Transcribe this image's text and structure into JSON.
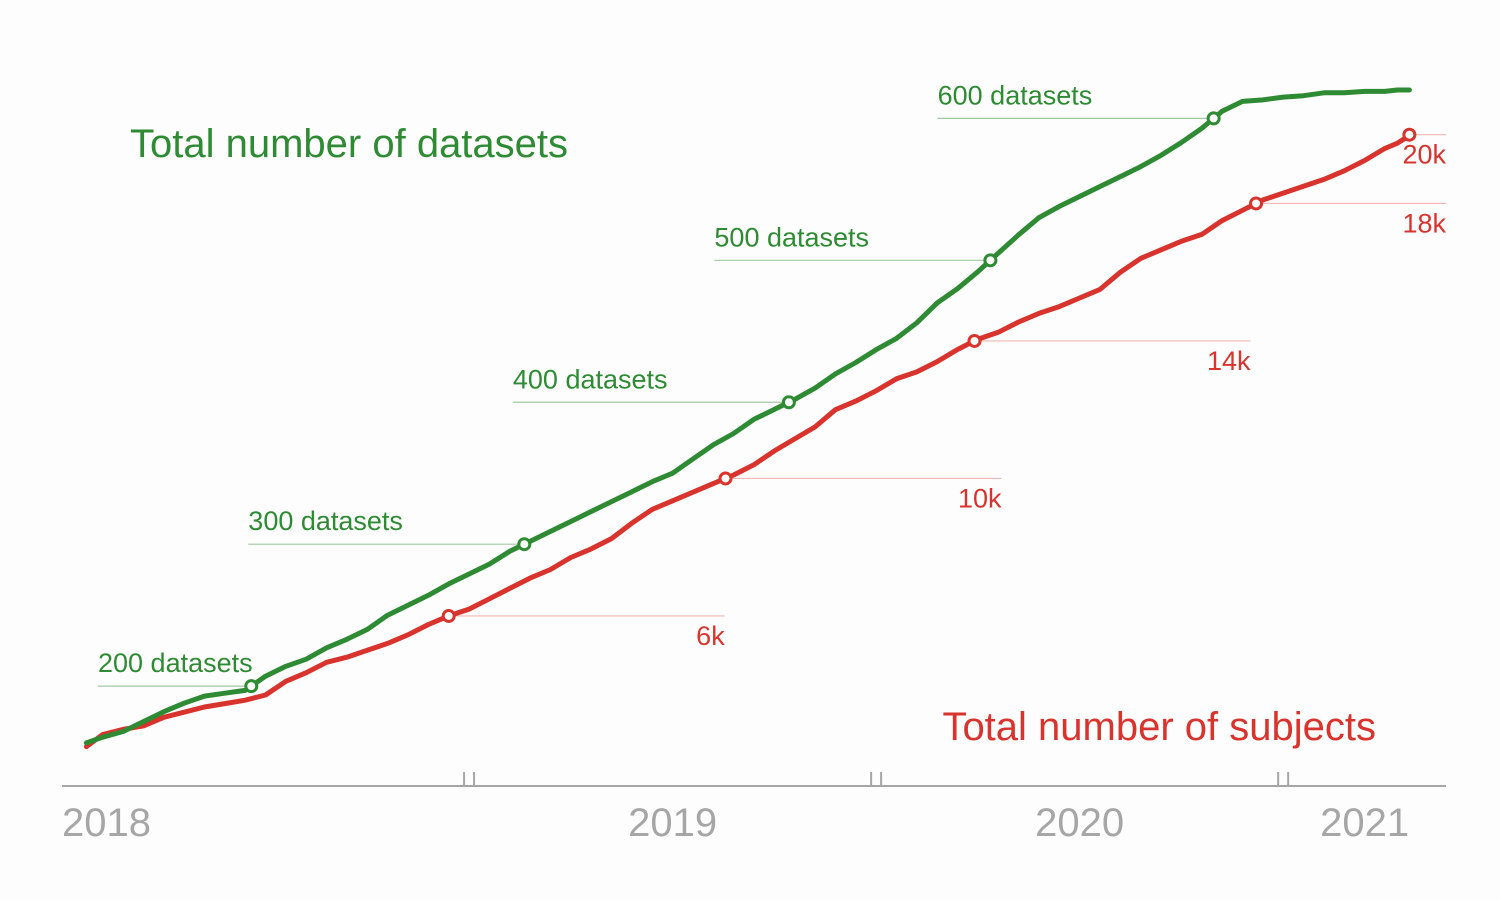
{
  "chart_data": {
    "type": "line",
    "x_unit": "year",
    "xlim": [
      2018.0,
      2021.4
    ],
    "x_labels": [
      "2018",
      "2019",
      "2020",
      "2021"
    ],
    "colors": {
      "datasets": "#2e8b33",
      "subjects": "#d8332c",
      "axis": "#a6a6a6"
    },
    "series": [
      {
        "key": "datasets",
        "name": "Total number of datasets",
        "axis_range": [
          155,
          620
        ],
        "x": [
          2018.06,
          2018.1,
          2018.15,
          2018.2,
          2018.25,
          2018.3,
          2018.35,
          2018.4,
          2018.45,
          2018.5,
          2018.55,
          2018.6,
          2018.65,
          2018.7,
          2018.75,
          2018.8,
          2018.85,
          2018.9,
          2018.95,
          2019.0,
          2019.05,
          2019.1,
          2019.15,
          2019.2,
          2019.25,
          2019.3,
          2019.35,
          2019.4,
          2019.45,
          2019.5,
          2019.55,
          2019.6,
          2019.65,
          2019.7,
          2019.75,
          2019.8,
          2019.85,
          2019.9,
          2019.95,
          2020.0,
          2020.05,
          2020.1,
          2020.15,
          2020.2,
          2020.25,
          2020.3,
          2020.35,
          2020.4,
          2020.45,
          2020.5,
          2020.55,
          2020.6,
          2020.65,
          2020.7,
          2020.75,
          2020.8,
          2020.85,
          2020.9,
          2020.95,
          2021.0,
          2021.05,
          2021.1,
          2021.15,
          2021.2,
          2021.25,
          2021.28,
          2021.3,
          2021.31
        ],
        "values": [
          160,
          164,
          168,
          175,
          182,
          188,
          193,
          195,
          197,
          207,
          214,
          219,
          227,
          233,
          240,
          250,
          257,
          264,
          272,
          279,
          286,
          295,
          302,
          309,
          316,
          323,
          330,
          337,
          344,
          350,
          360,
          370,
          378,
          388,
          395,
          402,
          410,
          420,
          428,
          437,
          445,
          456,
          470,
          480,
          492,
          505,
          518,
          530,
          538,
          545,
          552,
          559,
          566,
          574,
          583,
          593,
          605,
          612,
          613,
          615,
          616,
          618,
          618,
          619,
          619,
          620,
          620,
          620
        ]
      },
      {
        "key": "subjects",
        "name": "Total number of subjects",
        "axis_range": [
          2100,
          21300
        ],
        "x": [
          2018.06,
          2018.1,
          2018.15,
          2018.2,
          2018.25,
          2018.3,
          2018.35,
          2018.4,
          2018.45,
          2018.5,
          2018.55,
          2018.6,
          2018.65,
          2018.7,
          2018.75,
          2018.8,
          2018.85,
          2018.9,
          2018.95,
          2019.0,
          2019.05,
          2019.1,
          2019.15,
          2019.2,
          2019.25,
          2019.3,
          2019.35,
          2019.4,
          2019.45,
          2019.5,
          2019.55,
          2019.6,
          2019.65,
          2019.7,
          2019.75,
          2019.8,
          2019.85,
          2019.9,
          2019.95,
          2020.0,
          2020.05,
          2020.1,
          2020.15,
          2020.2,
          2020.25,
          2020.3,
          2020.35,
          2020.4,
          2020.45,
          2020.5,
          2020.55,
          2020.6,
          2020.65,
          2020.7,
          2020.75,
          2020.8,
          2020.85,
          2020.9,
          2020.95,
          2021.0,
          2021.05,
          2021.1,
          2021.15,
          2021.2,
          2021.25,
          2021.28,
          2021.3,
          2021.31
        ],
        "values": [
          2200,
          2550,
          2700,
          2800,
          3050,
          3200,
          3350,
          3450,
          3550,
          3700,
          4100,
          4350,
          4650,
          4800,
          5000,
          5200,
          5450,
          5750,
          6000,
          6200,
          6500,
          6800,
          7100,
          7350,
          7700,
          7950,
          8250,
          8700,
          9100,
          9350,
          9600,
          9850,
          10100,
          10400,
          10800,
          11150,
          11500,
          12000,
          12250,
          12550,
          12900,
          13100,
          13400,
          13750,
          14050,
          14250,
          14550,
          14800,
          15000,
          15250,
          15500,
          16000,
          16400,
          16650,
          16900,
          17100,
          17500,
          17800,
          18100,
          18300,
          18500,
          18700,
          18950,
          19250,
          19600,
          19750,
          19900,
          20000
        ]
      }
    ],
    "annotations": [
      {
        "series": "datasets",
        "value": 200,
        "label": "200 datasets"
      },
      {
        "series": "datasets",
        "value": 300,
        "label": "300 datasets"
      },
      {
        "series": "datasets",
        "value": 400,
        "label": "400 datasets"
      },
      {
        "series": "datasets",
        "value": 500,
        "label": "500 datasets"
      },
      {
        "series": "datasets",
        "value": 600,
        "label": "600 datasets"
      },
      {
        "series": "subjects",
        "value": 6000,
        "label": "6k"
      },
      {
        "series": "subjects",
        "value": 10000,
        "label": "10k"
      },
      {
        "series": "subjects",
        "value": 14000,
        "label": "14k"
      },
      {
        "series": "subjects",
        "value": 18000,
        "label": "18k"
      },
      {
        "series": "subjects",
        "value": 20000,
        "label": "20k"
      }
    ]
  }
}
